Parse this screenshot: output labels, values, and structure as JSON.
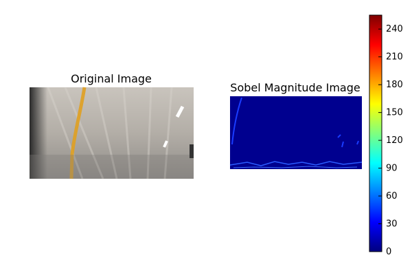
{
  "chart_data": [
    {
      "type": "image",
      "title": "Original Image",
      "description_colors": {
        "road": "#a9a49d",
        "lane_line": "#e0a020",
        "shadow": "#2c2c2c"
      }
    },
    {
      "type": "heatmap",
      "title": "Sobel Magnitude Image",
      "colormap": "jet",
      "colorbar": {
        "ticks": [
          "0",
          "30",
          "60",
          "90",
          "120",
          "150",
          "180",
          "210",
          "240"
        ],
        "range": [
          0,
          255
        ]
      },
      "background_color": "#00008f",
      "edge_color": "#1a3cff"
    }
  ]
}
